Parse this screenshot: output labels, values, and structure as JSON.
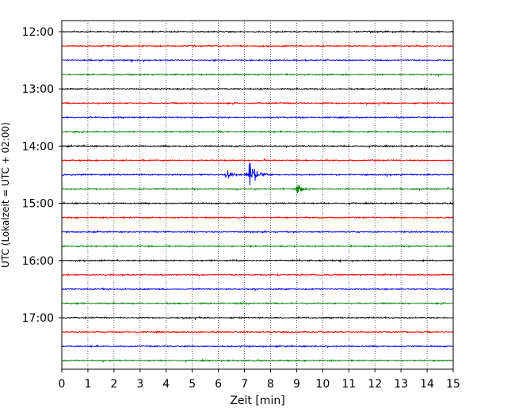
{
  "chart_data": {
    "type": "line",
    "title": "",
    "xlabel": "Zeit  [min]",
    "ylabel": "UTC (Lokalzeit = UTC + 02:00)",
    "xlim": [
      0,
      15
    ],
    "x_ticks": [
      "0",
      "1",
      "2",
      "3",
      "4",
      "5",
      "6",
      "7",
      "8",
      "9",
      "10",
      "11",
      "12",
      "13",
      "14",
      "15"
    ],
    "y_tick_labels": [
      "12:00",
      "13:00",
      "14:00",
      "15:00",
      "16:00",
      "17:00"
    ],
    "grid": "vertical dotted",
    "trace_minutes": 15,
    "trace_start": "12:00",
    "trace_end": "17:45",
    "trace_colors": [
      "#000000",
      "#ff0000",
      "#0000ff",
      "#008000"
    ],
    "noise_level": "low",
    "events": [
      {
        "trace_start": "14:30",
        "time_min": 6.3,
        "color": "#0000ff",
        "amplitude": "medium"
      },
      {
        "trace_start": "14:30",
        "time_min": 7.2,
        "color": "#0000ff",
        "amplitude": "high"
      },
      {
        "trace_start": "14:45",
        "time_min": 9.0,
        "color": "#008000",
        "amplitude": "medium"
      }
    ]
  }
}
